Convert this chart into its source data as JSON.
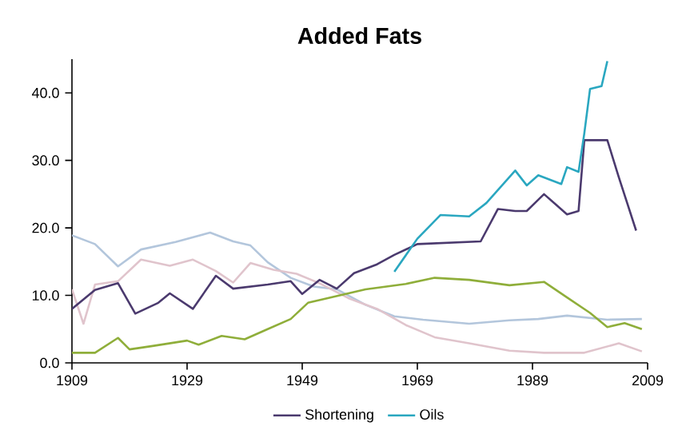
{
  "chart_data": {
    "type": "line",
    "title": "Added Fats",
    "xlim": [
      1909,
      2009
    ],
    "xticks": [
      1909,
      1929,
      1949,
      1969,
      1989,
      2009
    ],
    "ylim": [
      0,
      45
    ],
    "yticks": [
      {
        "value": 0,
        "label": "0.0"
      },
      {
        "value": 10,
        "label": "10.0"
      },
      {
        "value": 20,
        "label": "20.0"
      },
      {
        "value": 30,
        "label": "30.0"
      },
      {
        "value": 40,
        "label": "40.0"
      }
    ],
    "legend": "bottom",
    "marker": "none",
    "line_style": "solid",
    "grid": false,
    "series": [
      {
        "color": "#b3c6dc",
        "x": [
          1909,
          1913,
          1917,
          1921,
          1927,
          1933,
          1937,
          1940,
          1943,
          1947,
          1951,
          1955,
          1960,
          1965,
          1970,
          1978,
          1985,
          1990,
          1995,
          2002,
          2008
        ],
        "values": [
          18.9,
          17.6,
          14.3,
          16.8,
          17.9,
          19.3,
          18,
          17.4,
          14.9,
          12.6,
          11.3,
          10.9,
          8.6,
          6.9,
          6.4,
          5.8,
          6.3,
          6.5,
          7,
          6.4,
          6.5
        ]
      },
      {
        "color": "#e0c4cc",
        "x": [
          1909,
          1911,
          1913,
          1917,
          1921,
          1926,
          1930,
          1934,
          1937,
          1940,
          1944,
          1948,
          1952,
          1957,
          1962,
          1967,
          1972,
          1978,
          1985,
          1991,
          1998,
          2004,
          2008
        ],
        "values": [
          10.9,
          5.8,
          11.6,
          12.1,
          15.3,
          14.4,
          15.3,
          13.6,
          11.9,
          14.8,
          13.8,
          13.2,
          11.8,
          9.6,
          8,
          5.6,
          3.8,
          2.9,
          1.8,
          1.5,
          1.5,
          2.9,
          1.7
        ]
      },
      {
        "color": "#8fae3a",
        "x": [
          1909,
          1913,
          1917,
          1919,
          1923,
          1929,
          1931,
          1935,
          1939,
          1943,
          1947,
          1950,
          1953,
          1960,
          1967,
          1972,
          1978,
          1985,
          1991,
          1995,
          1999,
          2002,
          2005,
          2008
        ],
        "values": [
          1.5,
          1.5,
          3.7,
          2,
          2.5,
          3.3,
          2.7,
          4,
          3.5,
          5,
          6.5,
          8.9,
          9.5,
          10.9,
          11.7,
          12.6,
          12.3,
          11.5,
          12,
          9.7,
          7.4,
          5.3,
          5.9,
          5
        ]
      },
      {
        "name": "Shortening",
        "color": "#4b3a6e",
        "x": [
          1909,
          1913,
          1917,
          1920,
          1924,
          1926,
          1930,
          1934,
          1937,
          1943,
          1947,
          1949,
          1952,
          1955,
          1958,
          1962,
          1965,
          1969,
          1980,
          1983,
          1986,
          1988,
          1991,
          1993,
          1995,
          1997,
          1998,
          2002,
          2004,
          2007
        ],
        "values": [
          8,
          10.8,
          11.8,
          7.3,
          8.9,
          10.3,
          8,
          12.9,
          11,
          11.6,
          12.1,
          10.2,
          12.3,
          11,
          13.3,
          14.6,
          16,
          17.6,
          18,
          22.8,
          22.5,
          22.5,
          25,
          23.5,
          22,
          22.5,
          33,
          33,
          27.5,
          19.6
        ]
      },
      {
        "name": "Oils",
        "color": "#2aa7c0",
        "x": [
          1965,
          1969,
          1973,
          1978,
          1981,
          1986,
          1988,
          1990,
          1994,
          1995,
          1997,
          1998,
          1999,
          2001,
          2002
        ],
        "values": [
          13.5,
          18.4,
          21.9,
          21.7,
          23.7,
          28.5,
          26.3,
          27.8,
          26.5,
          29,
          28.3,
          34,
          40.6,
          41,
          44.7
        ]
      }
    ]
  }
}
